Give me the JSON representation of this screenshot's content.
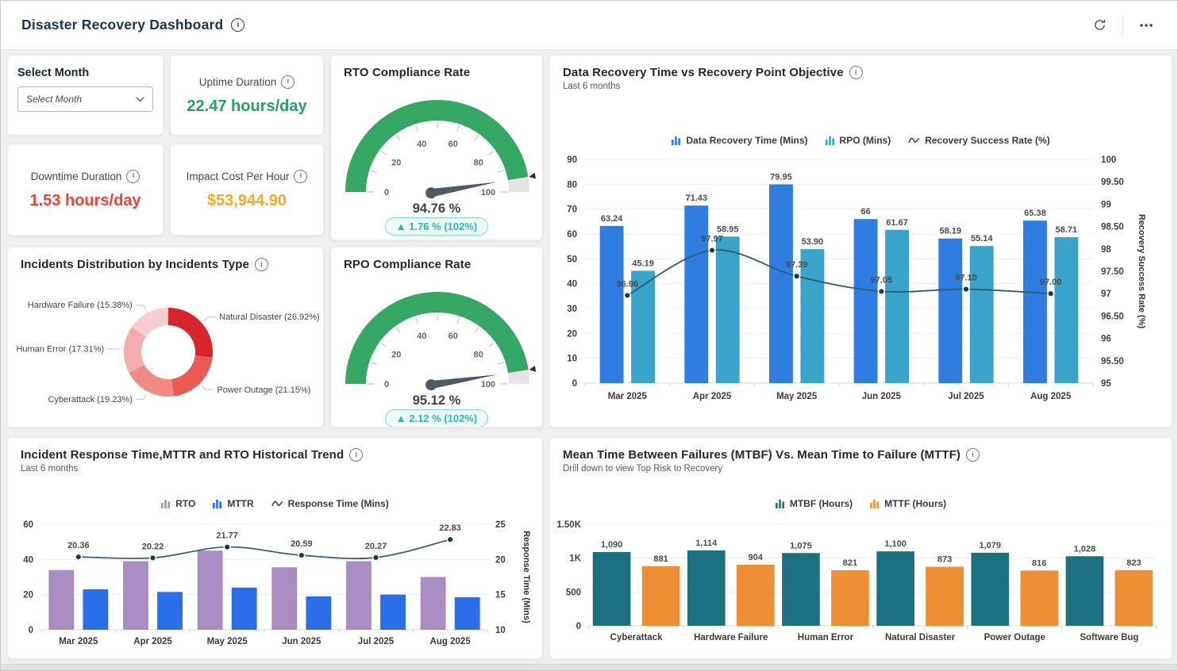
{
  "header": {
    "title": "Disaster Recovery Dashboard"
  },
  "filter": {
    "label": "Select Month",
    "placeholder": "Select Month"
  },
  "kpis": [
    {
      "id": "uptime",
      "title": "Uptime Duration",
      "value": "22.47 hours/day",
      "color": "#1ea55d"
    },
    {
      "id": "downtime",
      "title": "Downtime Duration",
      "value": "1.53 hours/day",
      "color": "#ef4136"
    },
    {
      "id": "impact",
      "title": "Impact Cost Per Hour",
      "value": "$53,944.90",
      "color": "#f7a823"
    }
  ],
  "chart_data": [
    {
      "id": "rto-gauge",
      "type": "gauge",
      "title": "RTO Compliance Rate",
      "min": 0,
      "max": 100,
      "value": 94.76,
      "value_label": "94.76 %",
      "delta_label": "▲ 1.76 % (102%)",
      "tick_labels": [
        0,
        20,
        40,
        60,
        80,
        100
      ],
      "colors": {
        "fill": "#34a765",
        "rest": "#e4e4e4",
        "needle": "#4d5a68",
        "badge_text": "#1fc0a6"
      }
    },
    {
      "id": "rpo-gauge",
      "type": "gauge",
      "title": "RPO Compliance Rate",
      "min": 0,
      "max": 100,
      "value": 95.12,
      "value_label": "95.12 %",
      "delta_label": "▲ 2.12 % (102%)",
      "tick_labels": [
        0,
        20,
        40,
        60,
        80,
        100
      ],
      "colors": {
        "fill": "#34a765",
        "rest": "#e4e4e4",
        "needle": "#4d5a68",
        "badge_text": "#1fc0a6"
      }
    },
    {
      "id": "incidents-pie",
      "type": "pie",
      "title": "Incidents Distribution by Incidents Type",
      "slices": [
        {
          "label": "Natural Disaster",
          "pct": 26.92,
          "display": "Natural Disaster (26.92%)",
          "color": "#d7252c"
        },
        {
          "label": "Power Outage",
          "pct": 21.15,
          "display": "Power Outage (21.15%)",
          "color": "#ea5a55"
        },
        {
          "label": "Cyberattack",
          "pct": 19.23,
          "display": "Cyberattack (19.23%)",
          "color": "#f08a82"
        },
        {
          "label": "Human Error",
          "pct": 17.31,
          "display": "Human Error (17.31%)",
          "color": "#f4adad"
        },
        {
          "label": "Hardware Failure",
          "pct": 15.38,
          "display": "Hardware Failure (15.38%)",
          "color": "#f8ccd0"
        }
      ]
    },
    {
      "id": "recovery",
      "type": "bar+line",
      "title": "Data Recovery Time vs Recovery Point Objective",
      "subtitle": "Last 6 months",
      "categories": [
        "Mar 2025",
        "Apr 2025",
        "May 2025",
        "Jun 2025",
        "Jul 2025",
        "Aug 2025"
      ],
      "left_axis": {
        "min": 0,
        "max": 90,
        "tick_values": [
          0,
          10,
          20,
          30,
          40,
          50,
          60,
          70,
          80,
          90
        ],
        "tick_labels": [
          "0",
          "10",
          "20",
          "30",
          "40",
          "50",
          "60",
          "70",
          "80",
          "90"
        ]
      },
      "right_axis": {
        "min": 95,
        "max": 100,
        "tick_values": [
          95,
          95.5,
          96,
          96.5,
          97,
          97.5,
          98,
          98.5,
          99,
          99.5,
          100
        ],
        "tick_labels": [
          "95",
          "95.50",
          "96",
          "96.50",
          "97",
          "97.50",
          "98",
          "98.50",
          "99",
          "99.50",
          "100"
        ],
        "title": "Recovery Success Rate (%)"
      },
      "series": [
        {
          "name": "Data Recovery Time (Mins)",
          "type": "bar",
          "color": "#2f7de1",
          "values": [
            63.24,
            71.43,
            79.95,
            66,
            58.19,
            65.38
          ],
          "labels": [
            "63.24",
            "71.43",
            "79.95",
            "66",
            "58.19",
            "65.38"
          ]
        },
        {
          "name": "RPO (Mins)",
          "type": "bar",
          "color": "#3aa3c9",
          "values": [
            45.19,
            58.95,
            53.9,
            61.67,
            55.14,
            58.71
          ],
          "labels": [
            "45.19",
            "58.95",
            "53.90",
            "61.67",
            "55.14",
            "58.71"
          ]
        },
        {
          "name": "Recovery Success Rate (%)",
          "type": "line",
          "axis": "right",
          "color": "#2c5d73",
          "marker": "#12384d",
          "values": [
            96.96,
            97.97,
            97.39,
            97.05,
            97.1,
            97.0
          ],
          "labels": [
            "96.96",
            "97.97",
            "97.39",
            "97.05",
            "97.10",
            "97.00"
          ]
        }
      ]
    },
    {
      "id": "response",
      "type": "bar+line",
      "title": "Incident Response Time,MTTR and RTO Historical Trend",
      "subtitle": "Last 6 months",
      "categories": [
        "Mar 2025",
        "Apr 2025",
        "May 2025",
        "Jun 2025",
        "Jul 2025",
        "Aug 2025"
      ],
      "left_axis": {
        "min": 0,
        "max": 60,
        "tick_values": [
          0,
          20,
          40,
          60
        ],
        "tick_labels": [
          "0",
          "20",
          "40",
          "60"
        ]
      },
      "right_axis": {
        "min": 10,
        "max": 25,
        "tick_values": [
          10,
          15,
          20,
          25
        ],
        "tick_labels": [
          "10",
          "15",
          "20",
          "25"
        ],
        "title": "Response Time (Mins)"
      },
      "series": [
        {
          "name": "RTO",
          "type": "bar",
          "color": "#a88cc2",
          "values": [
            34,
            39,
            45,
            35.5,
            39,
            30
          ]
        },
        {
          "name": "MTTR",
          "type": "bar",
          "color": "#2a6fe8",
          "values": [
            23,
            21.5,
            24,
            19,
            20,
            18.5
          ]
        },
        {
          "name": "Response Time (Mins)",
          "type": "line",
          "axis": "right",
          "color": "#35627a",
          "marker": "#12384d",
          "values": [
            20.36,
            20.22,
            21.77,
            20.59,
            20.27,
            22.83
          ],
          "labels": [
            "20.36",
            "20.22",
            "21.77",
            "20.59",
            "20.27",
            "22.83"
          ]
        }
      ]
    },
    {
      "id": "mtbf",
      "type": "bar",
      "title": "Mean Time Between Failures (MTBF) Vs. Mean Time to Failure (MTTF)",
      "subtitle": "Drill down to view Top Risk to Recovery",
      "categories": [
        "Cyberattack",
        "Hardware Failure",
        "Human Error",
        "Natural Disaster",
        "Power Outage",
        "Software Bug"
      ],
      "left_axis": {
        "min": 0,
        "max": 1500,
        "tick_values": [
          0,
          500,
          1000,
          1500
        ],
        "tick_labels": [
          "0",
          "500",
          "1K",
          "1.50K"
        ]
      },
      "series": [
        {
          "name": "MTBF (Hours)",
          "type": "bar",
          "color": "#1b7180",
          "values": [
            1090,
            1114,
            1075,
            1100,
            1079,
            1028
          ],
          "labels": [
            "1,090",
            "1,114",
            "1,075",
            "1,100",
            "1,079",
            "1,028"
          ]
        },
        {
          "name": "MTTF (Hours)",
          "type": "bar",
          "color": "#ee8f35",
          "values": [
            881,
            904,
            821,
            873,
            816,
            823
          ],
          "labels": [
            "881",
            "904",
            "821",
            "873",
            "816",
            "823"
          ]
        }
      ]
    }
  ]
}
